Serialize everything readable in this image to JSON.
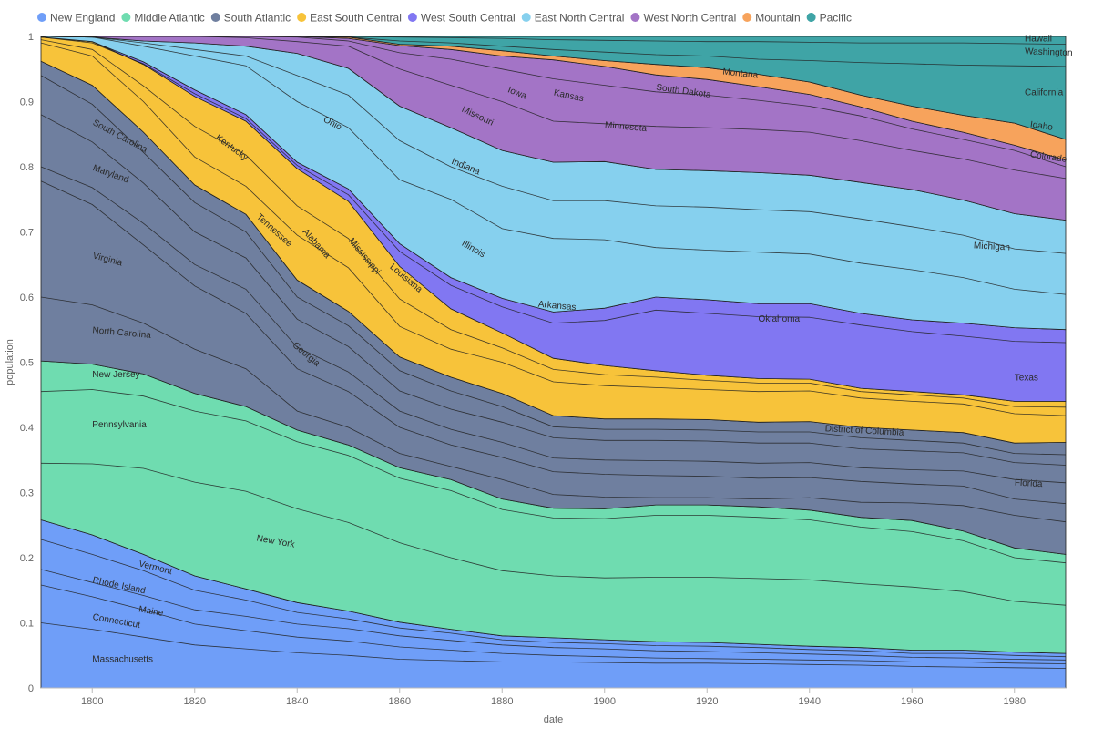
{
  "chart_data": {
    "type": "area",
    "stacking": "normalized",
    "xlabel": "date",
    "ylabel": "population",
    "xlim": [
      1790,
      1990
    ],
    "ylim": [
      0,
      1
    ],
    "x_ticks": [
      1800,
      1820,
      1840,
      1860,
      1880,
      1900,
      1920,
      1940,
      1960,
      1980
    ],
    "y_ticks": [
      0,
      0.1,
      0.2,
      0.3,
      0.4,
      0.5,
      0.6,
      0.7,
      0.8,
      0.9,
      1
    ],
    "legend_position": "top-left",
    "x": [
      1790,
      1800,
      1810,
      1820,
      1830,
      1840,
      1850,
      1860,
      1870,
      1880,
      1890,
      1900,
      1910,
      1920,
      1930,
      1940,
      1950,
      1960,
      1970,
      1980,
      1990
    ],
    "groups": [
      {
        "name": "New England",
        "color": "#6f9ef8",
        "top": [
          0.258,
          0.235,
          0.205,
          0.172,
          0.152,
          0.131,
          0.118,
          0.101,
          0.09,
          0.08,
          0.077,
          0.074,
          0.071,
          0.07,
          0.067,
          0.064,
          0.062,
          0.058,
          0.058,
          0.055,
          0.053
        ]
      },
      {
        "name": "Middle Atlantic",
        "color": "#6fdcb0",
        "top": [
          0.502,
          0.497,
          0.482,
          0.452,
          0.432,
          0.396,
          0.373,
          0.338,
          0.32,
          0.29,
          0.276,
          0.275,
          0.281,
          0.281,
          0.278,
          0.273,
          0.262,
          0.257,
          0.241,
          0.215,
          0.205
        ]
      },
      {
        "name": "South Atlantic",
        "color": "#6f7f9f",
        "top": [
          0.962,
          0.925,
          0.853,
          0.772,
          0.727,
          0.626,
          0.578,
          0.508,
          0.477,
          0.452,
          0.418,
          0.413,
          0.413,
          0.412,
          0.408,
          0.409,
          0.4,
          0.396,
          0.392,
          0.376,
          0.377
        ]
      },
      {
        "name": "East South Central",
        "color": "#f7c33a",
        "top": [
          0.999,
          0.992,
          0.957,
          0.908,
          0.87,
          0.797,
          0.747,
          0.647,
          0.582,
          0.545,
          0.506,
          0.495,
          0.487,
          0.48,
          0.475,
          0.474,
          0.46,
          0.455,
          0.45,
          0.44,
          0.44
        ]
      },
      {
        "name": "West South Central",
        "color": "#8177f2",
        "top": [
          0.999,
          0.992,
          0.961,
          0.918,
          0.88,
          0.807,
          0.766,
          0.682,
          0.63,
          0.598,
          0.577,
          0.583,
          0.6,
          0.596,
          0.59,
          0.59,
          0.575,
          0.565,
          0.56,
          0.553,
          0.55
        ]
      },
      {
        "name": "East North Central",
        "color": "#86d0ee",
        "top": [
          1.0,
          0.999,
          0.993,
          0.99,
          0.985,
          0.974,
          0.951,
          0.893,
          0.86,
          0.825,
          0.807,
          0.808,
          0.796,
          0.794,
          0.791,
          0.787,
          0.776,
          0.765,
          0.749,
          0.728,
          0.718
        ]
      },
      {
        "name": "West North Central",
        "color": "#a374c6",
        "top": [
          1.0,
          1.0,
          1.0,
          1.0,
          1.0,
          1.0,
          0.997,
          0.986,
          0.98,
          0.97,
          0.964,
          0.954,
          0.941,
          0.934,
          0.923,
          0.911,
          0.892,
          0.87,
          0.853,
          0.833,
          0.81
        ]
      },
      {
        "name": "Mountain",
        "color": "#f7a35c",
        "top": [
          1.0,
          1.0,
          1.0,
          1.0,
          1.0,
          1.0,
          0.999,
          0.988,
          0.985,
          0.978,
          0.97,
          0.963,
          0.957,
          0.952,
          0.942,
          0.93,
          0.91,
          0.893,
          0.879,
          0.867,
          0.842
        ]
      },
      {
        "name": "Pacific",
        "color": "#3fa4a6",
        "top": [
          1,
          1,
          1,
          1,
          1,
          1,
          1,
          1,
          1,
          1,
          1,
          1,
          1,
          1,
          1,
          1,
          1,
          1,
          1,
          1,
          1
        ]
      }
    ],
    "boundary_lines": [
      [
        0.1,
        0.09,
        0.078,
        0.066,
        0.06,
        0.054,
        0.05,
        0.044,
        0.042,
        0.04,
        0.04,
        0.039,
        0.038,
        0.038,
        0.037,
        0.036,
        0.035,
        0.033,
        0.032,
        0.031,
        0.03
      ],
      [
        0.158,
        0.14,
        0.12,
        0.098,
        0.088,
        0.078,
        0.072,
        0.063,
        0.058,
        0.053,
        0.05,
        0.048,
        0.046,
        0.045,
        0.044,
        0.043,
        0.042,
        0.04,
        0.04,
        0.038,
        0.037
      ],
      [
        0.182,
        0.162,
        0.142,
        0.12,
        0.11,
        0.098,
        0.091,
        0.08,
        0.073,
        0.066,
        0.062,
        0.06,
        0.057,
        0.056,
        0.054,
        0.052,
        0.05,
        0.047,
        0.046,
        0.044,
        0.043
      ],
      [
        0.228,
        0.205,
        0.18,
        0.15,
        0.135,
        0.116,
        0.106,
        0.092,
        0.084,
        0.074,
        0.07,
        0.068,
        0.065,
        0.064,
        0.062,
        0.059,
        0.057,
        0.053,
        0.053,
        0.05,
        0.048
      ],
      [
        0.345,
        0.344,
        0.337,
        0.316,
        0.302,
        0.275,
        0.254,
        0.223,
        0.2,
        0.18,
        0.172,
        0.169,
        0.17,
        0.17,
        0.168,
        0.166,
        0.16,
        0.155,
        0.148,
        0.133,
        0.127
      ],
      [
        0.455,
        0.458,
        0.448,
        0.425,
        0.41,
        0.378,
        0.357,
        0.322,
        0.303,
        0.274,
        0.261,
        0.26,
        0.265,
        0.265,
        0.262,
        0.258,
        0.247,
        0.24,
        0.226,
        0.2,
        0.192
      ],
      [
        0.6,
        0.588,
        0.56,
        0.52,
        0.49,
        0.425,
        0.4,
        0.36,
        0.34,
        0.32,
        0.297,
        0.293,
        0.292,
        0.292,
        0.29,
        0.292,
        0.285,
        0.284,
        0.28,
        0.265,
        0.255
      ],
      [
        0.778,
        0.742,
        0.68,
        0.617,
        0.575,
        0.49,
        0.455,
        0.4,
        0.373,
        0.354,
        0.332,
        0.328,
        0.326,
        0.325,
        0.322,
        0.323,
        0.317,
        0.313,
        0.31,
        0.29,
        0.283
      ],
      [
        0.8,
        0.768,
        0.713,
        0.65,
        0.612,
        0.523,
        0.485,
        0.425,
        0.397,
        0.377,
        0.353,
        0.35,
        0.349,
        0.348,
        0.345,
        0.346,
        0.338,
        0.335,
        0.333,
        0.32,
        0.315
      ],
      [
        0.88,
        0.838,
        0.775,
        0.7,
        0.66,
        0.566,
        0.524,
        0.456,
        0.428,
        0.408,
        0.384,
        0.38,
        0.38,
        0.379,
        0.376,
        0.376,
        0.367,
        0.364,
        0.361,
        0.346,
        0.342
      ],
      [
        0.94,
        0.896,
        0.822,
        0.745,
        0.7,
        0.6,
        0.556,
        0.487,
        0.456,
        0.432,
        0.401,
        0.397,
        0.397,
        0.396,
        0.393,
        0.393,
        0.384,
        0.38,
        0.376,
        0.36,
        0.358
      ],
      [
        0.99,
        0.97,
        0.9,
        0.815,
        0.77,
        0.695,
        0.645,
        0.555,
        0.52,
        0.5,
        0.47,
        0.464,
        0.461,
        0.458,
        0.455,
        0.456,
        0.445,
        0.44,
        0.436,
        0.421,
        0.418
      ],
      [
        0.995,
        0.98,
        0.924,
        0.862,
        0.818,
        0.74,
        0.69,
        0.597,
        0.55,
        0.522,
        0.489,
        0.481,
        0.477,
        0.472,
        0.468,
        0.468,
        0.455,
        0.45,
        0.445,
        0.432,
        0.431
      ],
      [
        0.999,
        0.99,
        0.958,
        0.912,
        0.874,
        0.802,
        0.757,
        0.67,
        0.618,
        0.585,
        0.56,
        0.564,
        0.58,
        0.575,
        0.57,
        0.569,
        0.557,
        0.547,
        0.54,
        0.532,
        0.53
      ],
      [
        1.0,
        0.999,
        0.985,
        0.97,
        0.955,
        0.9,
        0.86,
        0.78,
        0.75,
        0.705,
        0.69,
        0.688,
        0.676,
        0.672,
        0.669,
        0.666,
        0.652,
        0.642,
        0.63,
        0.612,
        0.604
      ],
      [
        1.0,
        0.999,
        0.99,
        0.98,
        0.97,
        0.94,
        0.91,
        0.84,
        0.8,
        0.77,
        0.748,
        0.748,
        0.74,
        0.738,
        0.734,
        0.731,
        0.72,
        0.708,
        0.695,
        0.674,
        0.667
      ],
      [
        1.0,
        1.0,
        1.0,
        1.0,
        0.998,
        0.992,
        0.985,
        0.95,
        0.925,
        0.9,
        0.87,
        0.866,
        0.862,
        0.86,
        0.857,
        0.853,
        0.84,
        0.825,
        0.812,
        0.795,
        0.782
      ],
      [
        1.0,
        1.0,
        1.0,
        1.0,
        1.0,
        0.999,
        0.993,
        0.975,
        0.965,
        0.95,
        0.935,
        0.925,
        0.915,
        0.91,
        0.902,
        0.893,
        0.878,
        0.858,
        0.842,
        0.825,
        0.8
      ],
      [
        1.0,
        1.0,
        1.0,
        1.0,
        1.0,
        1.0,
        0.999,
        0.993,
        0.99,
        0.985,
        0.98,
        0.976,
        0.972,
        0.97,
        0.965,
        0.963,
        0.96,
        0.958,
        0.956,
        0.955,
        0.954
      ],
      [
        1.0,
        1.0,
        1.0,
        1.0,
        1.0,
        1.0,
        1.0,
        0.999,
        0.998,
        0.997,
        0.995,
        0.994,
        0.993,
        0.992,
        0.992,
        0.991,
        0.99,
        0.99,
        0.99,
        0.989,
        0.988
      ]
    ],
    "labels": [
      {
        "text": "Massachusetts",
        "x": 1800,
        "y": 0.04,
        "angle": 0
      },
      {
        "text": "Connecticut",
        "x": 1800,
        "y": 0.105,
        "angle": 10
      },
      {
        "text": "Maine",
        "x": 1809,
        "y": 0.117,
        "angle": 10
      },
      {
        "text": "Rhode Island",
        "x": 1800,
        "y": 0.162,
        "angle": 12
      },
      {
        "text": "Vermont",
        "x": 1809,
        "y": 0.187,
        "angle": 14
      },
      {
        "text": "New York",
        "x": 1832,
        "y": 0.226,
        "angle": 10
      },
      {
        "text": "Pennsylvania",
        "x": 1800,
        "y": 0.4,
        "angle": 0
      },
      {
        "text": "New Jersey",
        "x": 1800,
        "y": 0.477,
        "angle": 0
      },
      {
        "text": "North Carolina",
        "x": 1800,
        "y": 0.545,
        "angle": 5
      },
      {
        "text": "Virginia",
        "x": 1800,
        "y": 0.66,
        "angle": 15
      },
      {
        "text": "Maryland",
        "x": 1800,
        "y": 0.795,
        "angle": 20
      },
      {
        "text": "South Carolina",
        "x": 1800,
        "y": 0.865,
        "angle": 28
      },
      {
        "text": "Georgia",
        "x": 1839,
        "y": 0.525,
        "angle": 40
      },
      {
        "text": "Kentucky",
        "x": 1824,
        "y": 0.843,
        "angle": 36
      },
      {
        "text": "Tennessee",
        "x": 1832,
        "y": 0.722,
        "angle": 42
      },
      {
        "text": "Alabama",
        "x": 1841,
        "y": 0.7,
        "angle": 48
      },
      {
        "text": "Mississippi",
        "x": 1850,
        "y": 0.686,
        "angle": 50
      },
      {
        "text": "Louisiana",
        "x": 1858,
        "y": 0.645,
        "angle": 40
      },
      {
        "text": "Arkansas",
        "x": 1887,
        "y": 0.585,
        "angle": 5
      },
      {
        "text": "Oklahoma",
        "x": 1930,
        "y": 0.562,
        "angle": 0
      },
      {
        "text": "Texas",
        "x": 1980,
        "y": 0.472,
        "angle": 0
      },
      {
        "text": "District of Columbia",
        "x": 1943,
        "y": 0.394,
        "angle": 3
      },
      {
        "text": "Florida",
        "x": 1980,
        "y": 0.311,
        "angle": 3
      },
      {
        "text": "Ohio",
        "x": 1845,
        "y": 0.87,
        "angle": 28
      },
      {
        "text": "Indiana",
        "x": 1870,
        "y": 0.805,
        "angle": 22
      },
      {
        "text": "Illinois",
        "x": 1872,
        "y": 0.68,
        "angle": 30
      },
      {
        "text": "Michigan",
        "x": 1972,
        "y": 0.675,
        "angle": 3
      },
      {
        "text": "Missouri",
        "x": 1872,
        "y": 0.885,
        "angle": 25
      },
      {
        "text": "Iowa",
        "x": 1881,
        "y": 0.915,
        "angle": 22
      },
      {
        "text": "Kansas",
        "x": 1890,
        "y": 0.91,
        "angle": 12
      },
      {
        "text": "Minnesota",
        "x": 1900,
        "y": 0.86,
        "angle": 5
      },
      {
        "text": "South Dakota",
        "x": 1910,
        "y": 0.918,
        "angle": 8
      },
      {
        "text": "Montana",
        "x": 1923,
        "y": 0.942,
        "angle": 6
      },
      {
        "text": "Idaho",
        "x": 1983,
        "y": 0.861,
        "angle": 8
      },
      {
        "text": "Colorado",
        "x": 1983,
        "y": 0.815,
        "angle": 8
      },
      {
        "text": "California",
        "x": 1982,
        "y": 0.91,
        "angle": 0
      },
      {
        "text": "Washington",
        "x": 1982,
        "y": 0.973,
        "angle": 2
      },
      {
        "text": "Hawaii",
        "x": 1982,
        "y": 0.992,
        "angle": 0
      }
    ]
  }
}
